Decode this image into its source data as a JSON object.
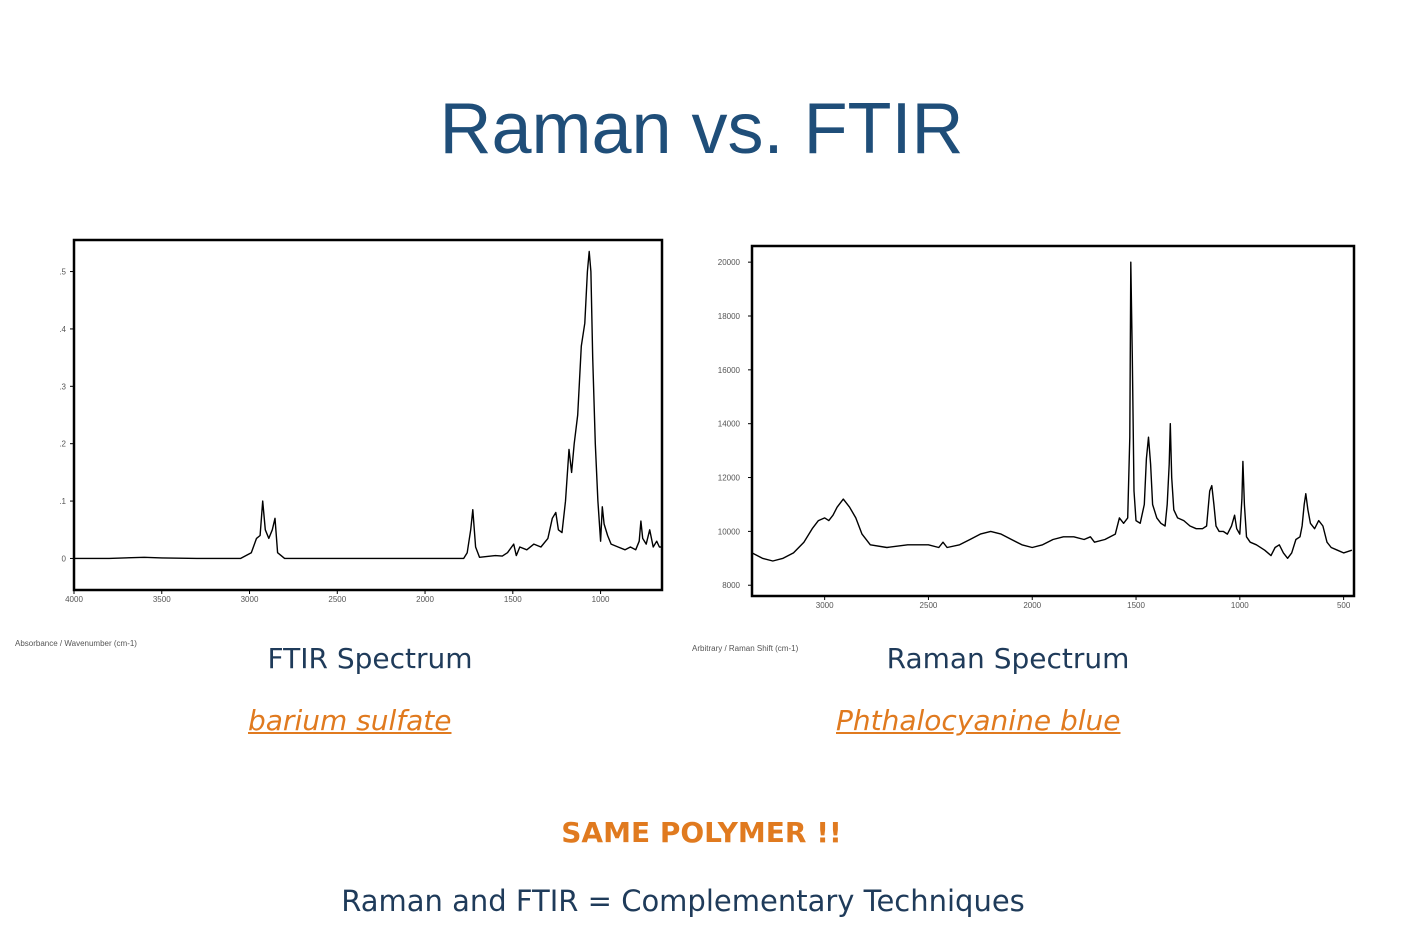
{
  "slide": {
    "title": "Raman vs. FTIR",
    "same_polymer": "SAME POLYMER !!",
    "footer": "Raman and FTIR = Complementary Techniques"
  },
  "colors": {
    "title": "#1f4e79",
    "caption": "#1f3b5a",
    "accent": "#e07a1f",
    "line": "#000000"
  },
  "panels": [
    {
      "caption": "FTIR Spectrum",
      "sample": "barium sulfate",
      "axis_note": "Absorbance / Wavenumber (cm-1)"
    },
    {
      "caption": "Raman Spectrum",
      "sample": "Phthalocyanine blue",
      "axis_note": "Arbitrary / Raman Shift (cm-1)"
    }
  ],
  "chart_data": [
    {
      "type": "line",
      "x_reversed": true,
      "xlim": [
        4000,
        650
      ],
      "ylim": [
        -0.055,
        0.555
      ],
      "x_ticks": [
        4000,
        3500,
        3000,
        2500,
        2000,
        1500,
        1000
      ],
      "x_tick_labels": [
        "4000",
        "3500",
        "3000",
        "2500",
        "2000",
        "1500",
        "1000"
      ],
      "y_ticks": [
        0,
        0.1,
        0.2,
        0.3,
        0.4,
        0.5
      ],
      "y_tick_labels": [
        "0",
        ".1",
        ".2",
        ".3",
        ".4",
        ".5"
      ],
      "grid": false,
      "points": [
        [
          4000,
          0.0
        ],
        [
          3800,
          0.0
        ],
        [
          3600,
          0.002
        ],
        [
          3500,
          0.001
        ],
        [
          3300,
          0.0
        ],
        [
          3050,
          0.0
        ],
        [
          2990,
          0.01
        ],
        [
          2960,
          0.035
        ],
        [
          2940,
          0.04
        ],
        [
          2925,
          0.1
        ],
        [
          2910,
          0.05
        ],
        [
          2890,
          0.035
        ],
        [
          2870,
          0.05
        ],
        [
          2855,
          0.07
        ],
        [
          2840,
          0.01
        ],
        [
          2800,
          0.0
        ],
        [
          2500,
          0.0
        ],
        [
          2000,
          0.0
        ],
        [
          1780,
          0.0
        ],
        [
          1760,
          0.01
        ],
        [
          1740,
          0.05
        ],
        [
          1728,
          0.085
        ],
        [
          1712,
          0.02
        ],
        [
          1690,
          0.002
        ],
        [
          1600,
          0.005
        ],
        [
          1560,
          0.004
        ],
        [
          1530,
          0.01
        ],
        [
          1495,
          0.025
        ],
        [
          1480,
          0.005
        ],
        [
          1460,
          0.02
        ],
        [
          1420,
          0.015
        ],
        [
          1380,
          0.025
        ],
        [
          1340,
          0.02
        ],
        [
          1300,
          0.035
        ],
        [
          1275,
          0.07
        ],
        [
          1255,
          0.08
        ],
        [
          1240,
          0.05
        ],
        [
          1220,
          0.045
        ],
        [
          1200,
          0.1
        ],
        [
          1180,
          0.19
        ],
        [
          1165,
          0.15
        ],
        [
          1150,
          0.2
        ],
        [
          1130,
          0.25
        ],
        [
          1110,
          0.37
        ],
        [
          1090,
          0.41
        ],
        [
          1075,
          0.5
        ],
        [
          1065,
          0.535
        ],
        [
          1055,
          0.5
        ],
        [
          1045,
          0.35
        ],
        [
          1030,
          0.2
        ],
        [
          1015,
          0.1
        ],
        [
          1000,
          0.03
        ],
        [
          990,
          0.09
        ],
        [
          980,
          0.06
        ],
        [
          960,
          0.04
        ],
        [
          940,
          0.025
        ],
        [
          900,
          0.02
        ],
        [
          860,
          0.015
        ],
        [
          830,
          0.02
        ],
        [
          800,
          0.015
        ],
        [
          780,
          0.03
        ],
        [
          770,
          0.065
        ],
        [
          760,
          0.035
        ],
        [
          740,
          0.025
        ],
        [
          720,
          0.05
        ],
        [
          700,
          0.02
        ],
        [
          680,
          0.03
        ],
        [
          665,
          0.02
        ],
        [
          650,
          0.02
        ]
      ]
    },
    {
      "type": "line",
      "x_reversed": true,
      "xlim": [
        3350,
        450
      ],
      "ylim": [
        7600,
        20600
      ],
      "x_ticks": [
        3000,
        2500,
        2000,
        1500,
        1000,
        500
      ],
      "x_tick_labels": [
        "3000",
        "2500",
        "2000",
        "1500",
        "1000",
        "500"
      ],
      "y_ticks": [
        8000,
        10000,
        12000,
        14000,
        16000,
        18000,
        20000
      ],
      "y_tick_labels": [
        "8000",
        "10000",
        "12000",
        "14000",
        "16000",
        "18000",
        "20000"
      ],
      "grid": false,
      "points": [
        [
          3350,
          9200
        ],
        [
          3300,
          9000
        ],
        [
          3250,
          8900
        ],
        [
          3200,
          9000
        ],
        [
          3150,
          9200
        ],
        [
          3100,
          9600
        ],
        [
          3060,
          10100
        ],
        [
          3030,
          10400
        ],
        [
          3000,
          10500
        ],
        [
          2980,
          10400
        ],
        [
          2960,
          10600
        ],
        [
          2940,
          10900
        ],
        [
          2910,
          11200
        ],
        [
          2880,
          10900
        ],
        [
          2850,
          10500
        ],
        [
          2820,
          9900
        ],
        [
          2780,
          9500
        ],
        [
          2700,
          9400
        ],
        [
          2600,
          9500
        ],
        [
          2500,
          9500
        ],
        [
          2450,
          9400
        ],
        [
          2430,
          9600
        ],
        [
          2410,
          9400
        ],
        [
          2350,
          9500
        ],
        [
          2300,
          9700
        ],
        [
          2250,
          9900
        ],
        [
          2200,
          10000
        ],
        [
          2150,
          9900
        ],
        [
          2100,
          9700
        ],
        [
          2050,
          9500
        ],
        [
          2000,
          9400
        ],
        [
          1950,
          9500
        ],
        [
          1900,
          9700
        ],
        [
          1850,
          9800
        ],
        [
          1800,
          9800
        ],
        [
          1750,
          9700
        ],
        [
          1720,
          9800
        ],
        [
          1700,
          9600
        ],
        [
          1650,
          9700
        ],
        [
          1600,
          9900
        ],
        [
          1580,
          10500
        ],
        [
          1560,
          10300
        ],
        [
          1540,
          10500
        ],
        [
          1530,
          13500
        ],
        [
          1525,
          20000
        ],
        [
          1518,
          16500
        ],
        [
          1510,
          11500
        ],
        [
          1500,
          10400
        ],
        [
          1480,
          10300
        ],
        [
          1460,
          11000
        ],
        [
          1450,
          12700
        ],
        [
          1440,
          13500
        ],
        [
          1430,
          12500
        ],
        [
          1420,
          11000
        ],
        [
          1400,
          10500
        ],
        [
          1380,
          10300
        ],
        [
          1360,
          10200
        ],
        [
          1350,
          11000
        ],
        [
          1340,
          12500
        ],
        [
          1335,
          14000
        ],
        [
          1328,
          12000
        ],
        [
          1318,
          10800
        ],
        [
          1300,
          10500
        ],
        [
          1270,
          10400
        ],
        [
          1240,
          10200
        ],
        [
          1210,
          10100
        ],
        [
          1180,
          10100
        ],
        [
          1160,
          10200
        ],
        [
          1145,
          11500
        ],
        [
          1135,
          11700
        ],
        [
          1125,
          11000
        ],
        [
          1115,
          10200
        ],
        [
          1100,
          10000
        ],
        [
          1080,
          10000
        ],
        [
          1060,
          9900
        ],
        [
          1040,
          10200
        ],
        [
          1025,
          10600
        ],
        [
          1015,
          10100
        ],
        [
          1000,
          9900
        ],
        [
          990,
          11200
        ],
        [
          985,
          12600
        ],
        [
          978,
          11000
        ],
        [
          968,
          9800
        ],
        [
          950,
          9600
        ],
        [
          920,
          9500
        ],
        [
          880,
          9300
        ],
        [
          850,
          9100
        ],
        [
          830,
          9400
        ],
        [
          810,
          9500
        ],
        [
          790,
          9200
        ],
        [
          770,
          9000
        ],
        [
          750,
          9200
        ],
        [
          730,
          9700
        ],
        [
          710,
          9800
        ],
        [
          700,
          10200
        ],
        [
          690,
          11000
        ],
        [
          682,
          11400
        ],
        [
          672,
          10800
        ],
        [
          660,
          10300
        ],
        [
          640,
          10100
        ],
        [
          620,
          10400
        ],
        [
          600,
          10200
        ],
        [
          580,
          9600
        ],
        [
          560,
          9400
        ],
        [
          530,
          9300
        ],
        [
          500,
          9200
        ],
        [
          460,
          9300
        ]
      ]
    }
  ]
}
